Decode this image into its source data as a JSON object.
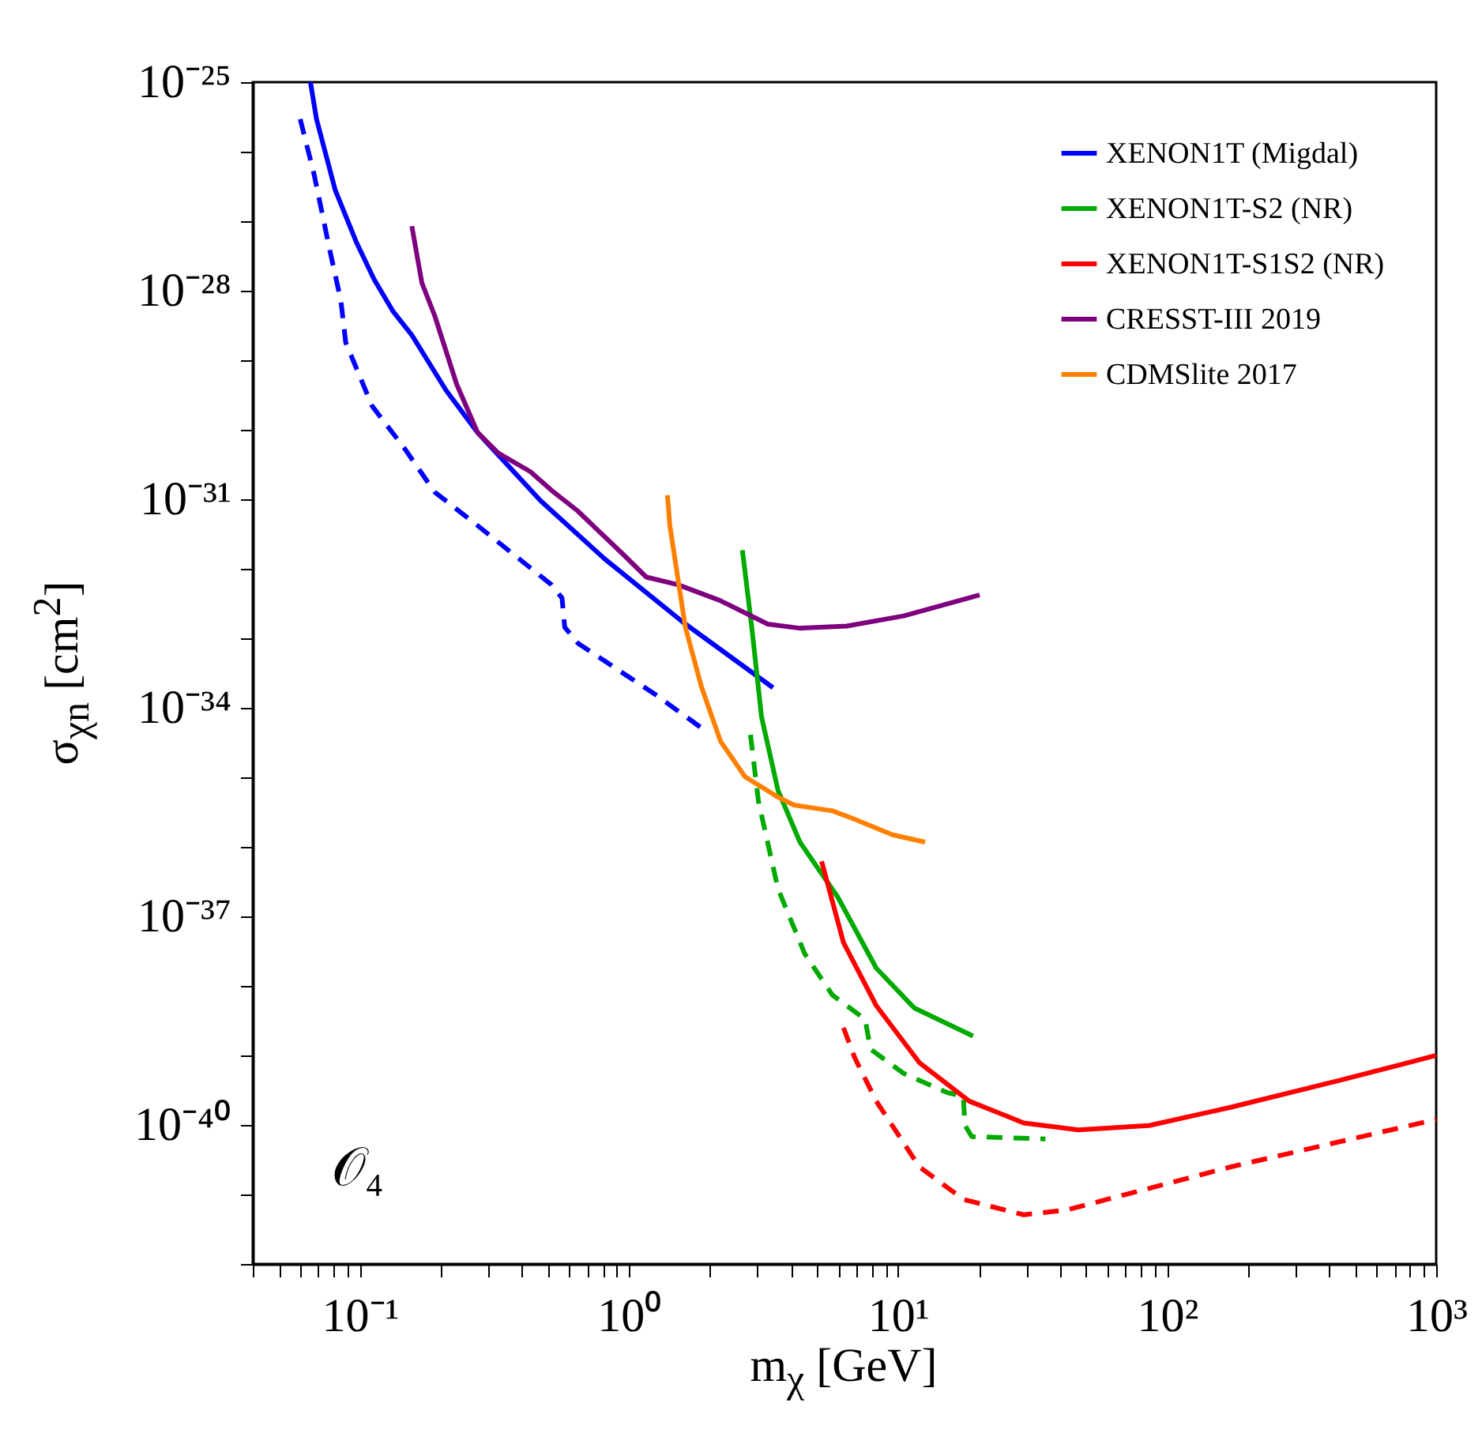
{
  "chart_data": {
    "type": "line",
    "xlabel": "m$_{χ}$ [GeV]",
    "ylabel": "σ$_{χn}$ [cm$^{2}$]",
    "annotations": [
      "𝒪₄"
    ],
    "log": "xy",
    "grid": false,
    "legend": "top right",
    "xlim": [
      0.04,
      1000
    ],
    "ylim": [
      1e-42,
      1e-25
    ],
    "xticks": [
      {
        "value": 0.04,
        "label": null
      },
      {
        "value": 0.05,
        "label": null
      },
      {
        "value": 0.06,
        "label": null
      },
      {
        "value": 0.07,
        "label": null
      },
      {
        "value": 0.08,
        "label": null
      },
      {
        "value": 0.09,
        "label": null
      },
      {
        "value": 0.1,
        "label": "10⁻¹"
      },
      {
        "value": 0.2,
        "label": null
      },
      {
        "value": 0.3,
        "label": null
      },
      {
        "value": 0.4,
        "label": null
      },
      {
        "value": 0.5,
        "label": null
      },
      {
        "value": 0.6,
        "label": null
      },
      {
        "value": 0.7,
        "label": null
      },
      {
        "value": 0.8,
        "label": null
      },
      {
        "value": 0.9,
        "label": null
      },
      {
        "value": 1,
        "label": "10⁰"
      },
      {
        "value": 2,
        "label": null
      },
      {
        "value": 3,
        "label": null
      },
      {
        "value": 4,
        "label": null
      },
      {
        "value": 5,
        "label": null
      },
      {
        "value": 6,
        "label": null
      },
      {
        "value": 7,
        "label": null
      },
      {
        "value": 8,
        "label": null
      },
      {
        "value": 9,
        "label": null
      },
      {
        "value": 10,
        "label": "10¹"
      },
      {
        "value": 20,
        "label": null
      },
      {
        "value": 30,
        "label": null
      },
      {
        "value": 40,
        "label": null
      },
      {
        "value": 50,
        "label": null
      },
      {
        "value": 60,
        "label": null
      },
      {
        "value": 70,
        "label": null
      },
      {
        "value": 80,
        "label": null
      },
      {
        "value": 90,
        "label": null
      },
      {
        "value": 100,
        "label": "10²"
      },
      {
        "value": 200,
        "label": null
      },
      {
        "value": 300,
        "label": null
      },
      {
        "value": 400,
        "label": null
      },
      {
        "value": 500,
        "label": null
      },
      {
        "value": 600,
        "label": null
      },
      {
        "value": 700,
        "label": null
      },
      {
        "value": 800,
        "label": null
      },
      {
        "value": 900,
        "label": null
      },
      {
        "value": 1000,
        "label": "10³"
      }
    ],
    "yticks": [
      {
        "value": 1e-42,
        "label": null
      },
      {
        "value": 1e-41,
        "label": null
      },
      {
        "value": 1e-40,
        "label": "10⁻⁴⁰"
      },
      {
        "value": 1e-39,
        "label": null
      },
      {
        "value": 1e-38,
        "label": null
      },
      {
        "value": 1e-37,
        "label": "10⁻³⁷"
      },
      {
        "value": 1e-36,
        "label": null
      },
      {
        "value": 1e-35,
        "label": null
      },
      {
        "value": 1e-34,
        "label": "10⁻³⁴"
      },
      {
        "value": 1e-33,
        "label": null
      },
      {
        "value": 1e-32,
        "label": null
      },
      {
        "value": 1e-31,
        "label": "10⁻³¹"
      },
      {
        "value": 1e-30,
        "label": null
      },
      {
        "value": 1e-29,
        "label": null
      },
      {
        "value": 1e-28,
        "label": "10⁻²⁸"
      },
      {
        "value": 1e-27,
        "label": null
      },
      {
        "value": 1e-26,
        "label": null
      },
      {
        "value": 1e-25,
        "label": "10⁻²⁵"
      }
    ],
    "series": [
      {
        "name": "XENON1T (Migdal)",
        "color": "#0000ff",
        "line_style": "solid",
        "x": [
          0.0655,
          0.069,
          0.081,
          0.097,
          0.113,
          0.133,
          0.156,
          0.209,
          0.274,
          0.47,
          0.81,
          1.59,
          3.43
        ],
        "values": [
          1e-25,
          2.95e-26,
          2.8e-27,
          5e-28,
          1.45e-28,
          5e-29,
          2.3e-29,
          3.7e-30,
          9.1e-31,
          9.5e-32,
          1.4e-32,
          1.7e-33,
          1.95e-34
        ]
      },
      {
        "color": "#0000ff",
        "line_style": "dashed",
        "x": [
          0.06,
          0.0676,
          0.077,
          0.085,
          0.0886,
          0.111,
          0.146,
          0.19,
          0.262,
          0.515,
          0.564,
          0.577,
          0.646,
          1.27,
          1.95
        ],
        "values": [
          2.95e-26,
          4.7e-27,
          4.1e-28,
          7.2e-29,
          1.8e-29,
          2.2e-30,
          5.5e-31,
          1.26e-31,
          4.8e-32,
          5.9e-33,
          3.8e-33,
          1.45e-33,
          8.5e-34,
          1.5e-34,
          4.5e-35
        ]
      },
      {
        "name": "XENON1T-S2 (NR)",
        "color": "#00aa00",
        "line_style": "solid",
        "x": [
          2.64,
          2.86,
          3.11,
          3.58,
          4.32,
          5.97,
          8.3,
          11.5,
          19.0
        ],
        "values": [
          1.86e-32,
          1.45e-33,
          7.4e-35,
          6.5e-36,
          1.17e-36,
          1.9e-37,
          1.8e-38,
          4.8e-39,
          1.9e-39
        ]
      },
      {
        "color": "#00aa00",
        "line_style": "dashed",
        "x": [
          2.83,
          3.03,
          3.58,
          4.5,
          5.7,
          7.55,
          7.9,
          10.5,
          15.3,
          17.5,
          17.7,
          18.8,
          35.3
        ],
        "values": [
          4.1e-35,
          4.5e-36,
          2.5e-37,
          2.9e-38,
          7.4e-39,
          3.3e-39,
          1.23e-39,
          5.5e-40,
          2.9e-40,
          2.6e-40,
          1e-40,
          6.8e-41,
          6.3e-41
        ]
      },
      {
        "name": "XENON1T-S1S2 (NR)",
        "color": "#ff0000",
        "line_style": "solid",
        "x": [
          5.2,
          6.27,
          8.3,
          12.0,
          18.4,
          29.3,
          46.8,
          85.7,
          173,
          440,
          1000
        ],
        "values": [
          6.2e-37,
          4.2e-38,
          5.2e-39,
          7.9e-40,
          2.2e-40,
          1.07e-40,
          8.5e-41,
          9.8e-41,
          1.8e-40,
          4.4e-40,
          1e-39
        ]
      },
      {
        "color": "#ff0000",
        "line_style": "dashed",
        "x": [
          6.27,
          6.9,
          8.3,
          12.0,
          17.5,
          29.3,
          42.5,
          173,
          1000
        ],
        "values": [
          2.5e-39,
          9.3e-40,
          2.2e-40,
          2.5e-41,
          8.5e-42,
          5.1e-42,
          6e-42,
          2.5e-41,
          1.2e-40
        ]
      },
      {
        "name": "CRESST-III 2019",
        "color": "#7f007f",
        "line_style": "solid",
        "x": [
          0.156,
          0.17,
          0.19,
          0.229,
          0.274,
          0.327,
          0.43,
          0.515,
          0.645,
          0.97,
          1.16,
          1.52,
          2.18,
          3.28,
          4.3,
          6.45,
          10.5,
          20.1
        ],
        "values": [
          8.5e-28,
          1.3e-28,
          4.3e-29,
          4.5e-30,
          9.1e-31,
          4.6e-31,
          2.5e-31,
          1.35e-31,
          6.8e-32,
          1.5e-32,
          7.6e-33,
          5.9e-33,
          3.5e-33,
          1.6e-33,
          1.4e-33,
          1.5e-33,
          2.1e-33,
          4.2e-33
        ]
      },
      {
        "name": "CDMSlite 2017",
        "color": "#ff8000",
        "line_style": "solid",
        "x": [
          1.39,
          1.42,
          1.62,
          1.86,
          2.19,
          2.7,
          3.58,
          4.1,
          5.7,
          6.9,
          9.5,
          12.6
        ],
        "values": [
          1.15e-31,
          4.1e-32,
          1.45e-33,
          2e-34,
          3.3e-35,
          1.02e-35,
          5.2e-36,
          4e-36,
          3.3e-36,
          2.5e-36,
          1.5e-36,
          1.17e-36
        ]
      }
    ]
  }
}
